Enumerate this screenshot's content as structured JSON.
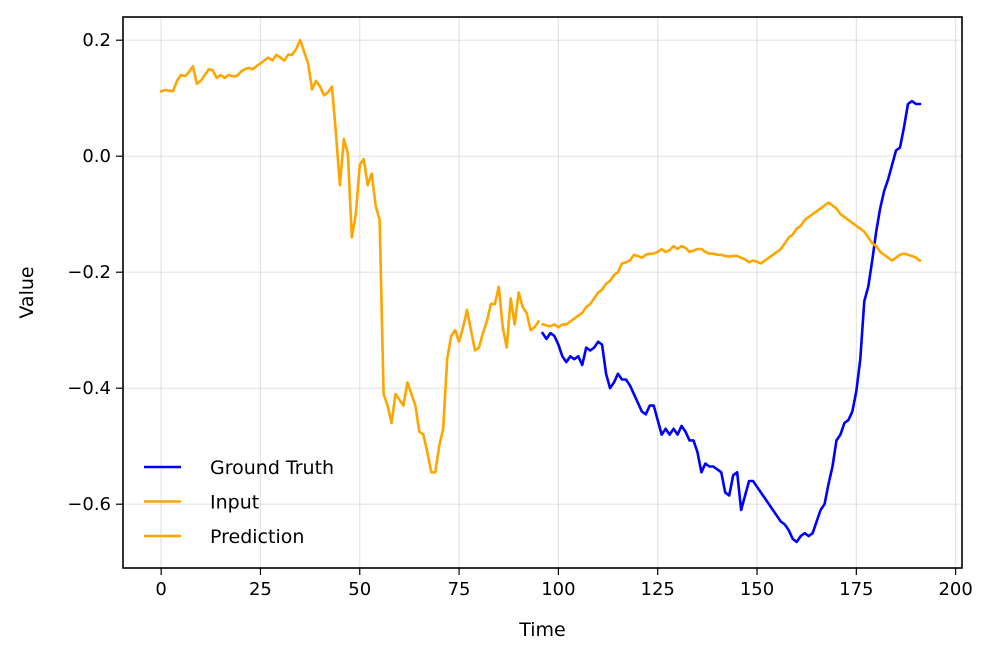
{
  "chart_data": {
    "type": "line",
    "xlabel": "Time",
    "ylabel": "Value",
    "xlim": [
      -9.6,
      201.6
    ],
    "ylim": [
      -0.71,
      0.24
    ],
    "xticks": [
      0,
      25,
      50,
      75,
      100,
      125,
      150,
      175,
      200
    ],
    "xtick_labels": [
      "0",
      "25",
      "50",
      "75",
      "100",
      "125",
      "150",
      "175",
      "200"
    ],
    "yticks": [
      -0.6,
      -0.4,
      -0.2,
      0.0,
      0.2
    ],
    "ytick_labels": [
      "−0.6",
      "−0.4",
      "−0.2",
      "0.0",
      "0.2"
    ],
    "grid": true,
    "legend_position": "lower-left",
    "series": [
      {
        "name": "Ground Truth",
        "color": "#0000ff",
        "x": [
          96,
          97,
          98,
          99,
          100,
          101,
          102,
          103,
          104,
          105,
          106,
          107,
          108,
          109,
          110,
          111,
          112,
          113,
          114,
          115,
          116,
          117,
          118,
          119,
          120,
          121,
          122,
          123,
          124,
          125,
          126,
          127,
          128,
          129,
          130,
          131,
          132,
          133,
          134,
          135,
          136,
          137,
          138,
          139,
          140,
          141,
          142,
          143,
          144,
          145,
          146,
          147,
          148,
          149,
          150,
          151,
          152,
          153,
          154,
          155,
          156,
          157,
          158,
          159,
          160,
          161,
          162,
          163,
          164,
          165,
          166,
          167,
          168,
          169,
          170,
          171,
          172,
          173,
          174,
          175,
          176,
          177,
          178,
          179,
          180,
          181,
          182,
          183,
          184,
          185,
          186,
          187,
          188,
          189,
          190,
          191
        ],
        "values": [
          -0.305,
          -0.315,
          -0.305,
          -0.31,
          -0.325,
          -0.345,
          -0.355,
          -0.345,
          -0.35,
          -0.345,
          -0.36,
          -0.33,
          -0.335,
          -0.33,
          -0.32,
          -0.325,
          -0.375,
          -0.4,
          -0.39,
          -0.375,
          -0.385,
          -0.385,
          -0.395,
          -0.41,
          -0.425,
          -0.44,
          -0.445,
          -0.43,
          -0.43,
          -0.455,
          -0.48,
          -0.47,
          -0.48,
          -0.47,
          -0.48,
          -0.465,
          -0.475,
          -0.49,
          -0.49,
          -0.51,
          -0.545,
          -0.53,
          -0.535,
          -0.535,
          -0.54,
          -0.545,
          -0.58,
          -0.585,
          -0.55,
          -0.545,
          -0.61,
          -0.585,
          -0.56,
          -0.56,
          -0.57,
          -0.58,
          -0.59,
          -0.6,
          -0.61,
          -0.62,
          -0.63,
          -0.635,
          -0.645,
          -0.66,
          -0.665,
          -0.655,
          -0.65,
          -0.655,
          -0.65,
          -0.63,
          -0.61,
          -0.6,
          -0.565,
          -0.535,
          -0.49,
          -0.48,
          -0.46,
          -0.455,
          -0.44,
          -0.405,
          -0.35,
          -0.25,
          -0.225,
          -0.18,
          -0.13,
          -0.09,
          -0.06,
          -0.04,
          -0.015,
          0.01,
          0.015,
          0.05,
          0.09,
          0.095,
          0.09,
          0.09
        ]
      },
      {
        "name": "Input",
        "color": "#ffa500",
        "x": [
          0,
          1,
          2,
          3,
          4,
          5,
          6,
          7,
          8,
          9,
          10,
          11,
          12,
          13,
          14,
          15,
          16,
          17,
          18,
          19,
          20,
          21,
          22,
          23,
          24,
          25,
          26,
          27,
          28,
          29,
          30,
          31,
          32,
          33,
          34,
          35,
          36,
          37,
          38,
          39,
          40,
          41,
          42,
          43,
          44,
          45,
          46,
          47,
          48,
          49,
          50,
          51,
          52,
          53,
          54,
          55,
          56,
          57,
          58,
          59,
          60,
          61,
          62,
          63,
          64,
          65,
          66,
          67,
          68,
          69,
          70,
          71,
          72,
          73,
          74,
          75,
          76,
          77,
          78,
          79,
          80,
          81,
          82,
          83,
          84,
          85,
          86,
          87,
          88,
          89,
          90,
          91,
          92,
          93,
          94,
          95
        ],
        "values": [
          0.112,
          0.114,
          0.113,
          0.112,
          0.13,
          0.14,
          0.138,
          0.145,
          0.155,
          0.125,
          0.13,
          0.14,
          0.15,
          0.148,
          0.135,
          0.14,
          0.135,
          0.14,
          0.138,
          0.138,
          0.145,
          0.15,
          0.152,
          0.15,
          0.155,
          0.16,
          0.165,
          0.17,
          0.165,
          0.175,
          0.17,
          0.165,
          0.175,
          0.175,
          0.185,
          0.2,
          0.18,
          0.16,
          0.115,
          0.13,
          0.12,
          0.105,
          0.11,
          0.12,
          0.04,
          -0.05,
          0.03,
          0.005,
          -0.14,
          -0.1,
          -0.015,
          -0.005,
          -0.05,
          -0.03,
          -0.085,
          -0.11,
          -0.41,
          -0.43,
          -0.46,
          -0.41,
          -0.42,
          -0.43,
          -0.39,
          -0.41,
          -0.43,
          -0.475,
          -0.48,
          -0.51,
          -0.545,
          -0.545,
          -0.5,
          -0.47,
          -0.35,
          -0.31,
          -0.3,
          -0.32,
          -0.295,
          -0.265,
          -0.3,
          -0.335,
          -0.33,
          -0.305,
          -0.285,
          -0.255,
          -0.255,
          -0.225,
          -0.295,
          -0.33,
          -0.245,
          -0.29,
          -0.235,
          -0.26,
          -0.27,
          -0.3,
          -0.295,
          -0.285
        ]
      },
      {
        "name": "Prediction",
        "color": "#ffa500",
        "x": [
          96,
          97,
          98,
          99,
          100,
          101,
          102,
          103,
          104,
          105,
          106,
          107,
          108,
          109,
          110,
          111,
          112,
          113,
          114,
          115,
          116,
          117,
          118,
          119,
          120,
          121,
          122,
          123,
          124,
          125,
          126,
          127,
          128,
          129,
          130,
          131,
          132,
          133,
          134,
          135,
          136,
          137,
          138,
          139,
          140,
          141,
          142,
          143,
          144,
          145,
          146,
          147,
          148,
          149,
          150,
          151,
          152,
          153,
          154,
          155,
          156,
          157,
          158,
          159,
          160,
          161,
          162,
          163,
          164,
          165,
          166,
          167,
          168,
          169,
          170,
          171,
          172,
          173,
          174,
          175,
          176,
          177,
          178,
          179,
          180,
          181,
          182,
          183,
          184,
          185,
          186,
          187,
          188,
          189,
          190,
          191
        ],
        "values": [
          -0.29,
          -0.292,
          -0.293,
          -0.29,
          -0.295,
          -0.29,
          -0.29,
          -0.285,
          -0.28,
          -0.275,
          -0.27,
          -0.26,
          -0.255,
          -0.245,
          -0.235,
          -0.23,
          -0.22,
          -0.215,
          -0.205,
          -0.2,
          -0.185,
          -0.183,
          -0.18,
          -0.17,
          -0.172,
          -0.175,
          -0.17,
          -0.168,
          -0.168,
          -0.165,
          -0.16,
          -0.165,
          -0.162,
          -0.155,
          -0.16,
          -0.155,
          -0.158,
          -0.165,
          -0.163,
          -0.16,
          -0.16,
          -0.165,
          -0.168,
          -0.168,
          -0.17,
          -0.17,
          -0.172,
          -0.173,
          -0.172,
          -0.172,
          -0.175,
          -0.178,
          -0.183,
          -0.18,
          -0.182,
          -0.185,
          -0.18,
          -0.175,
          -0.17,
          -0.165,
          -0.16,
          -0.15,
          -0.14,
          -0.135,
          -0.125,
          -0.12,
          -0.11,
          -0.105,
          -0.1,
          -0.095,
          -0.09,
          -0.085,
          -0.08,
          -0.085,
          -0.09,
          -0.1,
          -0.105,
          -0.11,
          -0.115,
          -0.12,
          -0.125,
          -0.13,
          -0.14,
          -0.15,
          -0.155,
          -0.165,
          -0.17,
          -0.175,
          -0.18,
          -0.175,
          -0.17,
          -0.168,
          -0.17,
          -0.172,
          -0.175,
          -0.18
        ]
      }
    ]
  }
}
